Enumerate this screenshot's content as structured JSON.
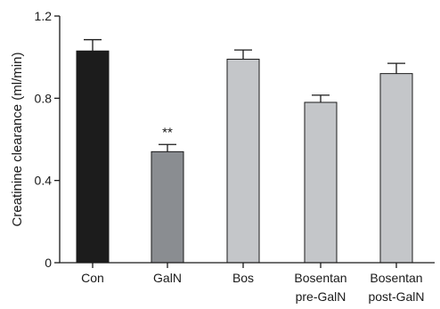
{
  "chart_data": {
    "type": "bar",
    "ylabel": "Creatinine clearance (ml/min)",
    "ylim": [
      0,
      1.2
    ],
    "yticks": [
      {
        "value": 0,
        "label": "0"
      },
      {
        "value": 0.4,
        "label": "0.4"
      },
      {
        "value": 0.8,
        "label": "0.8"
      },
      {
        "value": 1.2,
        "label": "1.2"
      }
    ],
    "categories": [
      {
        "lines": [
          "Con"
        ]
      },
      {
        "lines": [
          "GalN"
        ]
      },
      {
        "lines": [
          "Bos"
        ]
      },
      {
        "lines": [
          "Bosentan",
          "pre-GalN"
        ]
      },
      {
        "lines": [
          "Bosentan",
          "post-GalN"
        ]
      }
    ],
    "values": [
      1.03,
      0.54,
      0.99,
      0.78,
      0.92
    ],
    "errors": [
      0.055,
      0.035,
      0.045,
      0.035,
      0.05
    ],
    "colors": [
      "#1c1c1c",
      "#8a8d91",
      "#c4c6c9",
      "#c4c6c9",
      "#c4c6c9"
    ],
    "annotations": [
      {
        "category_index": 1,
        "text": "**"
      }
    ],
    "grid": false,
    "legend": "none"
  }
}
